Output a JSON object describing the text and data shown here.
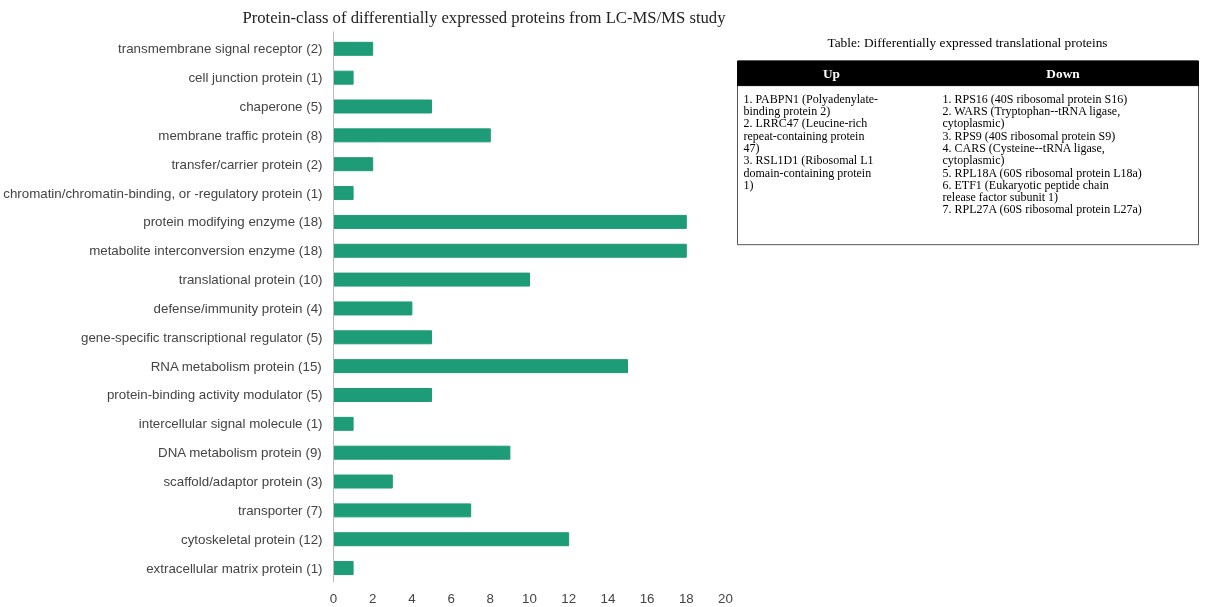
{
  "chart_data": [
    {
      "type": "bar",
      "orientation": "horizontal",
      "title": "Protein-class of differentially expressed proteins from LC-MS/MS study",
      "categories": [
        "transmembrane signal receptor (2)",
        "cell junction protein (1)",
        "chaperone (5)",
        "membrane traffic protein (8)",
        "transfer/carrier protein (2)",
        "chromatin/chromatin-binding, or -regulatory protein (1)",
        "protein modifying enzyme (18)",
        "metabolite interconversion enzyme (18)",
        "translational protein (10)",
        "defense/immunity protein (4)",
        "gene-specific transcriptional regulator (5)",
        "RNA metabolism protein (15)",
        "protein-binding activity modulator (5)",
        "intercellular signal molecule (1)",
        "DNA metabolism protein (9)",
        "scaffold/adaptor protein (3)",
        "transporter (7)",
        "cytoskeletal protein (12)",
        "extracellular matrix protein (1)"
      ],
      "values": [
        2,
        1,
        5,
        8,
        2,
        1,
        18,
        18,
        10,
        4,
        5,
        15,
        5,
        1,
        9,
        3,
        7,
        12,
        1
      ],
      "color": "#1e9b77",
      "xlim": [
        0,
        20
      ],
      "xticks": [
        0,
        2,
        4,
        6,
        8,
        10,
        12,
        14,
        16,
        18,
        20
      ],
      "grid": false
    },
    {
      "type": "other",
      "title": "Table: Differentially expressed translational proteins"
    },
    {
      "type": "other",
      "title": "Up",
      "annotations": [
        "1. PABPN1 (Polyadenylate-binding protein 2)",
        "2. LRRC47 (Leucine-rich repeat-containing protein 47)",
        "3. RSL1D1 (Ribosomal L1 domain-containing protein 1)"
      ]
    },
    {
      "type": "other",
      "title": "Down",
      "annotations": [
        "1. RPS16 (40S ribosomal protein S16)",
        "2. WARS (Tryptophan--tRNA ligase, cytoplasmic)",
        "3. RPS9 (40S ribosomal protein S9)",
        "4. CARS (Cysteine--tRNA ligase, cytoplasmic)",
        "5. RPL18A (60S ribosomal protein L18a)",
        "6. ETF1 (Eukaryotic peptide chain release factor subunit 1)",
        "7. RPL27A (60S ribosomal protein L27a)"
      ]
    }
  ]
}
